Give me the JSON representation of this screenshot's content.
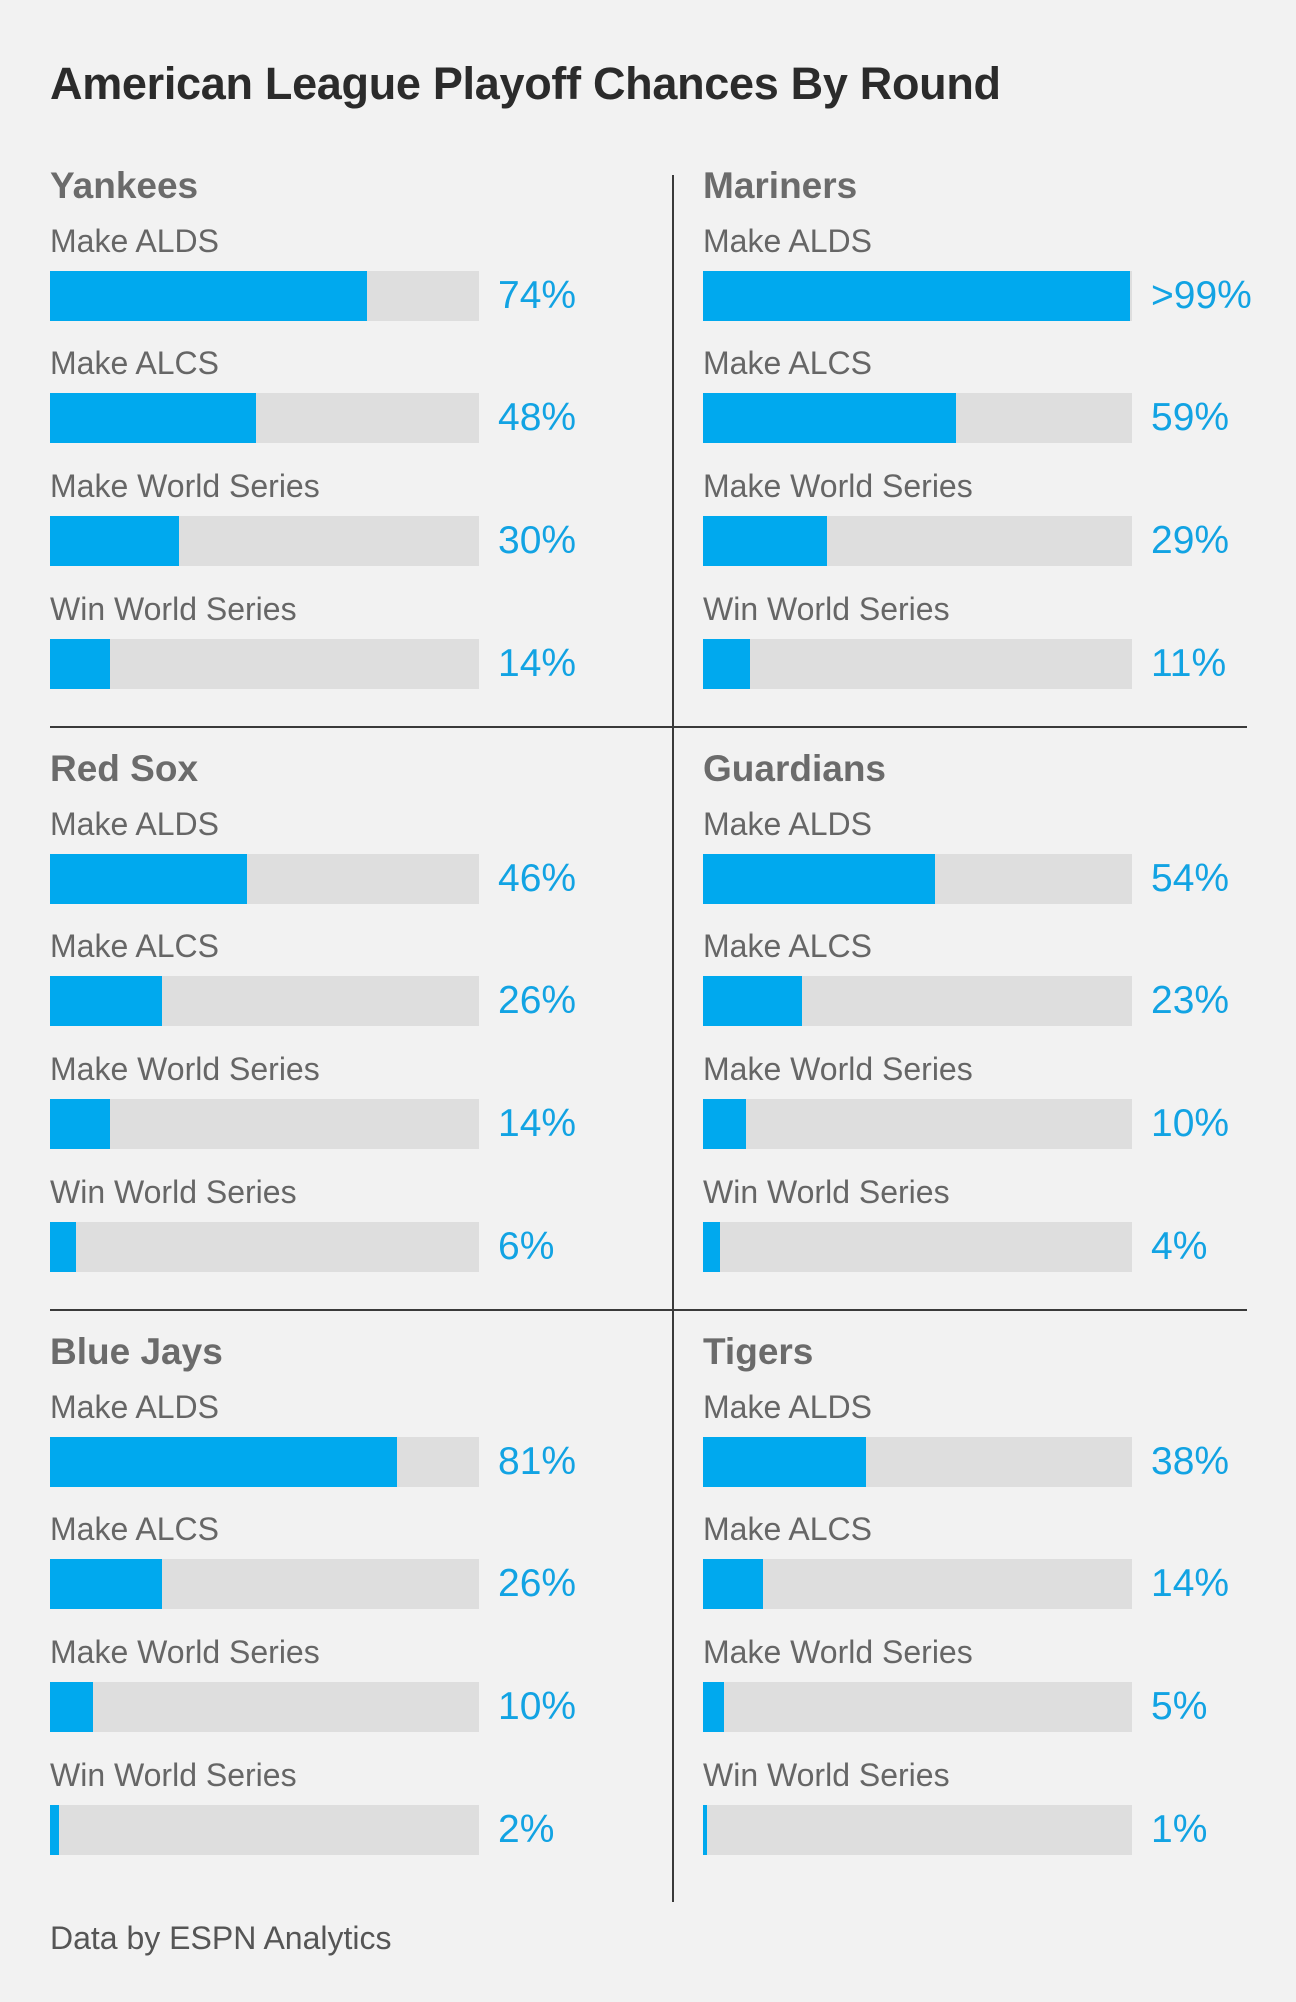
{
  "title": "American League Playoff Chances By Round",
  "source": "Data by ESPN Analytics",
  "colors": {
    "bar": "#00a9ee",
    "track": "#dedede",
    "percent_text": "#12a3e3",
    "background": "#f2f2f2"
  },
  "chart_data": {
    "type": "bar",
    "orientation": "horizontal",
    "title": "American League Playoff Chances By Round",
    "xlim": [
      0,
      100
    ],
    "unit": "%",
    "categories": [
      "Make ALDS",
      "Make ALCS",
      "Make World Series",
      "Win World Series"
    ],
    "series": [
      {
        "name": "Yankees",
        "values": [
          74,
          48,
          30,
          14
        ],
        "labels": [
          "74%",
          "48%",
          "30%",
          "14%"
        ]
      },
      {
        "name": "Mariners",
        "values": [
          99.5,
          59,
          29,
          11
        ],
        "labels": [
          ">99%",
          "59%",
          "29%",
          "11%"
        ]
      },
      {
        "name": "Red Sox",
        "values": [
          46,
          26,
          14,
          6
        ],
        "labels": [
          "46%",
          "26%",
          "14%",
          "6%"
        ]
      },
      {
        "name": "Guardians",
        "values": [
          54,
          23,
          10,
          4
        ],
        "labels": [
          "54%",
          "23%",
          "10%",
          "4%"
        ]
      },
      {
        "name": "Blue Jays",
        "values": [
          81,
          26,
          10,
          2
        ],
        "labels": [
          "81%",
          "26%",
          "10%",
          "2%"
        ]
      },
      {
        "name": "Tigers",
        "values": [
          38,
          14,
          5,
          1
        ],
        "labels": [
          "38%",
          "14%",
          "5%",
          "1%"
        ]
      }
    ]
  }
}
